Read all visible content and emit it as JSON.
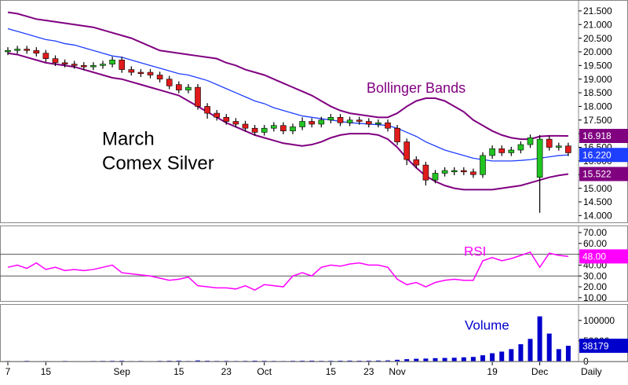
{
  "chart_data": [
    {
      "type": "candlestick",
      "title_lines": [
        "March",
        "Comex Silver"
      ],
      "period": "Daily",
      "categories": [
        "7",
        null,
        null,
        null,
        "15",
        null,
        null,
        null,
        null,
        null,
        null,
        null,
        "Sep",
        null,
        null,
        null,
        null,
        null,
        "15",
        null,
        null,
        null,
        null,
        "23",
        null,
        null,
        null,
        "Oct",
        null,
        null,
        null,
        null,
        null,
        null,
        "15",
        null,
        null,
        null,
        "23",
        null,
        null,
        "Nov",
        null,
        null,
        null,
        null,
        null,
        null,
        null,
        null,
        null,
        "19",
        null,
        null,
        null,
        null,
        "Dec",
        null,
        null,
        null
      ],
      "open": [
        20.0,
        20.05,
        20.1,
        20.05,
        19.95,
        19.75,
        19.6,
        19.55,
        19.5,
        19.45,
        19.5,
        19.55,
        19.7,
        19.35,
        19.25,
        19.25,
        19.15,
        19.0,
        18.8,
        18.6,
        18.7,
        18.0,
        17.75,
        17.6,
        17.45,
        17.35,
        17.2,
        17.05,
        17.2,
        17.3,
        17.1,
        17.25,
        17.45,
        17.35,
        17.5,
        17.6,
        17.4,
        17.5,
        17.45,
        17.35,
        17.4,
        17.2,
        16.7,
        16.05,
        15.85,
        15.3,
        15.55,
        15.6,
        15.65,
        15.6,
        15.5,
        16.2,
        16.45,
        16.3,
        16.4,
        16.6,
        15.4,
        16.8,
        16.5,
        16.55
      ],
      "high": [
        20.17,
        20.22,
        20.22,
        20.17,
        20.07,
        19.87,
        19.72,
        19.67,
        19.62,
        19.62,
        19.67,
        19.82,
        19.82,
        19.47,
        19.37,
        19.37,
        19.27,
        19.12,
        18.92,
        18.82,
        18.82,
        18.12,
        17.87,
        17.72,
        17.57,
        17.47,
        17.32,
        17.32,
        17.42,
        17.42,
        17.37,
        17.6,
        17.57,
        17.62,
        17.72,
        17.72,
        17.62,
        17.62,
        17.57,
        17.52,
        17.52,
        17.32,
        16.82,
        16.17,
        15.97,
        15.67,
        15.77,
        15.77,
        15.77,
        15.72,
        16.32,
        16.57,
        16.57,
        16.52,
        16.72,
        16.97,
        16.95,
        16.92,
        16.67,
        16.67
      ],
      "low": [
        19.88,
        19.93,
        19.93,
        19.83,
        19.63,
        19.48,
        19.43,
        19.38,
        19.33,
        19.33,
        19.38,
        19.43,
        19.23,
        19.13,
        19.08,
        19.03,
        18.88,
        18.63,
        18.48,
        18.48,
        17.88,
        17.55,
        17.48,
        17.33,
        17.23,
        17.08,
        16.93,
        16.93,
        17.08,
        16.98,
        16.98,
        17.13,
        17.23,
        17.23,
        17.38,
        17.28,
        17.28,
        17.33,
        17.23,
        17.23,
        17.08,
        16.58,
        15.85,
        15.73,
        15.1,
        15.18,
        15.43,
        15.48,
        15.48,
        15.38,
        15.38,
        16.08,
        16.18,
        16.18,
        16.28,
        16.48,
        14.1,
        16.38,
        16.38,
        16.18
      ],
      "close": [
        20.05,
        20.1,
        20.05,
        19.95,
        19.75,
        19.6,
        19.55,
        19.5,
        19.45,
        19.5,
        19.55,
        19.7,
        19.35,
        19.25,
        19.2,
        19.15,
        19.0,
        18.75,
        18.6,
        18.7,
        18.0,
        17.75,
        17.6,
        17.45,
        17.35,
        17.2,
        17.05,
        17.2,
        17.3,
        17.1,
        17.25,
        17.45,
        17.35,
        17.5,
        17.6,
        17.4,
        17.5,
        17.45,
        17.35,
        17.4,
        17.2,
        16.7,
        16.05,
        15.85,
        15.3,
        15.55,
        15.65,
        15.65,
        15.6,
        15.5,
        16.2,
        16.45,
        16.3,
        16.4,
        16.6,
        16.85,
        16.8,
        16.5,
        16.55,
        16.3
      ],
      "up_color": "#22c422",
      "down_color": "#e01b1b",
      "bands": {
        "label": "Bollinger Bands",
        "color": "#800080",
        "middle_color": "#1f3fff",
        "upper": [
          21.45,
          21.4,
          21.3,
          21.2,
          21.15,
          21.1,
          21.05,
          21.0,
          20.95,
          20.9,
          20.8,
          20.7,
          20.6,
          20.5,
          20.35,
          20.2,
          20.05,
          20.0,
          19.95,
          19.9,
          19.85,
          19.8,
          19.75,
          19.6,
          19.5,
          19.35,
          19.25,
          19.15,
          19.0,
          18.85,
          18.7,
          18.55,
          18.4,
          18.2,
          18.0,
          17.85,
          17.75,
          17.7,
          17.65,
          17.6,
          17.6,
          17.75,
          18.0,
          18.2,
          18.3,
          18.3,
          18.2,
          18.0,
          17.8,
          17.5,
          17.3,
          17.1,
          16.95,
          16.85,
          16.8,
          16.8,
          16.9,
          16.92,
          16.92,
          16.918
        ],
        "middle": [
          20.85,
          20.75,
          20.65,
          20.55,
          20.45,
          20.4,
          20.3,
          20.25,
          20.15,
          20.05,
          19.95,
          19.85,
          19.8,
          19.7,
          19.6,
          19.5,
          19.4,
          19.3,
          19.2,
          19.15,
          19.05,
          18.95,
          18.8,
          18.65,
          18.5,
          18.35,
          18.2,
          18.1,
          17.95,
          17.85,
          17.75,
          17.65,
          17.6,
          17.55,
          17.5,
          17.45,
          17.4,
          17.38,
          17.35,
          17.33,
          17.3,
          17.2,
          17.05,
          16.9,
          16.7,
          16.55,
          16.4,
          16.3,
          16.2,
          16.1,
          16.05,
          16.0,
          16.0,
          16.0,
          16.02,
          16.05,
          16.1,
          16.15,
          16.2,
          16.22
        ],
        "middle_end_label": "16.220",
        "lower": [
          19.95,
          19.9,
          19.8,
          19.7,
          19.6,
          19.55,
          19.5,
          19.45,
          19.35,
          19.25,
          19.15,
          19.05,
          19.0,
          18.9,
          18.8,
          18.7,
          18.6,
          18.5,
          18.4,
          18.2,
          18.0,
          17.8,
          17.6,
          17.4,
          17.25,
          17.1,
          16.95,
          16.85,
          16.75,
          16.65,
          16.6,
          16.55,
          16.6,
          16.7,
          16.85,
          16.95,
          17.0,
          17.0,
          17.0,
          16.95,
          16.8,
          16.5,
          16.1,
          15.75,
          15.45,
          15.25,
          15.1,
          15.0,
          14.95,
          14.95,
          14.95,
          14.95,
          15.0,
          15.05,
          15.1,
          15.2,
          15.3,
          15.4,
          15.47,
          15.522
        ]
      },
      "ylim": [
        13.75,
        21.9
      ],
      "yticks": [
        {
          "value": 21.5,
          "label": "21.500"
        },
        {
          "value": 21.0,
          "label": "21.000"
        },
        {
          "value": 20.5,
          "label": "20.500"
        },
        {
          "value": 20.0,
          "label": "20.000"
        },
        {
          "value": 19.5,
          "label": "19.500"
        },
        {
          "value": 19.0,
          "label": "19.000"
        },
        {
          "value": 18.5,
          "label": "18.500"
        },
        {
          "value": 18.0,
          "label": "18.000"
        },
        {
          "value": 17.5,
          "label": "17.500"
        },
        {
          "value": 17.0,
          "label": "17.000"
        },
        {
          "value": 16.5,
          "label": "16.500"
        },
        {
          "value": 16.0,
          "label": "16.000"
        },
        {
          "value": 15.5,
          "label": "15.500"
        },
        {
          "value": 15.0,
          "label": "15.000"
        },
        {
          "value": 14.5,
          "label": "14.500"
        },
        {
          "value": 14.0,
          "label": "14.000"
        }
      ]
    },
    {
      "type": "line",
      "label": "RSI",
      "color": "#ff00ff",
      "values": [
        38,
        40,
        37,
        42,
        36,
        38,
        35,
        36,
        35,
        36,
        38,
        40,
        33,
        32,
        31,
        30,
        28,
        26,
        27,
        29,
        21,
        20,
        19,
        19,
        18,
        21,
        17,
        22,
        21,
        20,
        30,
        33,
        30,
        38,
        40,
        39,
        41,
        42,
        40,
        40,
        38,
        27,
        22,
        24,
        20,
        24,
        26,
        27,
        26,
        26,
        44,
        47,
        44,
        46,
        49,
        52,
        38,
        51,
        49,
        48
      ],
      "end_label": "48.00",
      "ref_lines": [
        30,
        50
      ],
      "ylim": [
        7,
        76.5
      ],
      "yticks": [
        {
          "value": 70,
          "label": "70.00"
        },
        {
          "value": 60,
          "label": "60.00"
        },
        {
          "value": 50,
          "label": "50.00"
        },
        {
          "value": 40,
          "label": "40.00"
        },
        {
          "value": 30,
          "label": "30.00"
        },
        {
          "value": 20,
          "label": "20.00"
        },
        {
          "value": 10,
          "label": "10.00"
        }
      ]
    },
    {
      "type": "bar",
      "label": "Volume",
      "color": "#0000cc",
      "values": [
        1200,
        800,
        1500,
        900,
        1100,
        700,
        1300,
        1000,
        900,
        1200,
        1400,
        1600,
        1800,
        1100,
        1300,
        1000,
        1500,
        1700,
        2000,
        1200,
        2500,
        1800,
        1400,
        1600,
        1300,
        1500,
        1900,
        1700,
        1400,
        1200,
        1600,
        1800,
        2000,
        1500,
        1700,
        1900,
        2100,
        1800,
        2000,
        2300,
        2600,
        4000,
        5500,
        6500,
        7000,
        8000,
        8500,
        9000,
        10000,
        11000,
        15000,
        20000,
        24000,
        30000,
        42000,
        55000,
        110000,
        68000,
        30000,
        38179
      ],
      "ylim": [
        0,
        140000
      ],
      "yticks": [
        100000,
        50000,
        0
      ]
    }
  ]
}
